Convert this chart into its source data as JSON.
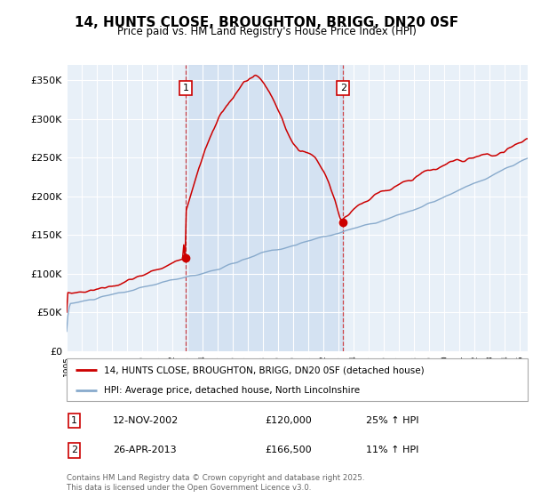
{
  "title": "14, HUNTS CLOSE, BROUGHTON, BRIGG, DN20 0SF",
  "subtitle": "Price paid vs. HM Land Registry's House Price Index (HPI)",
  "ylabel_ticks": [
    "£0",
    "£50K",
    "£100K",
    "£150K",
    "£200K",
    "£250K",
    "£300K",
    "£350K"
  ],
  "ytick_values": [
    0,
    50000,
    100000,
    150000,
    200000,
    250000,
    300000,
    350000
  ],
  "ylim": [
    0,
    370000
  ],
  "legend_line1": "14, HUNTS CLOSE, BROUGHTON, BRIGG, DN20 0SF (detached house)",
  "legend_line2": "HPI: Average price, detached house, North Lincolnshire",
  "purchase1_date": "12-NOV-2002",
  "purchase1_price": 120000,
  "purchase1_pct": "25% ↑ HPI",
  "purchase2_date": "26-APR-2013",
  "purchase2_price": 166500,
  "purchase2_pct": "11% ↑ HPI",
  "purchase1_year": 2002.87,
  "purchase2_year": 2013.29,
  "footer": "Contains HM Land Registry data © Crown copyright and database right 2025.\nThis data is licensed under the Open Government Licence v3.0.",
  "line_color_red": "#cc0000",
  "line_color_blue": "#88aacc",
  "shade_color": "#ccddf0",
  "vline_color": "#cc0000",
  "background_plot": "#e8f0f8",
  "x_start_year": 1995,
  "x_end_year": 2025
}
